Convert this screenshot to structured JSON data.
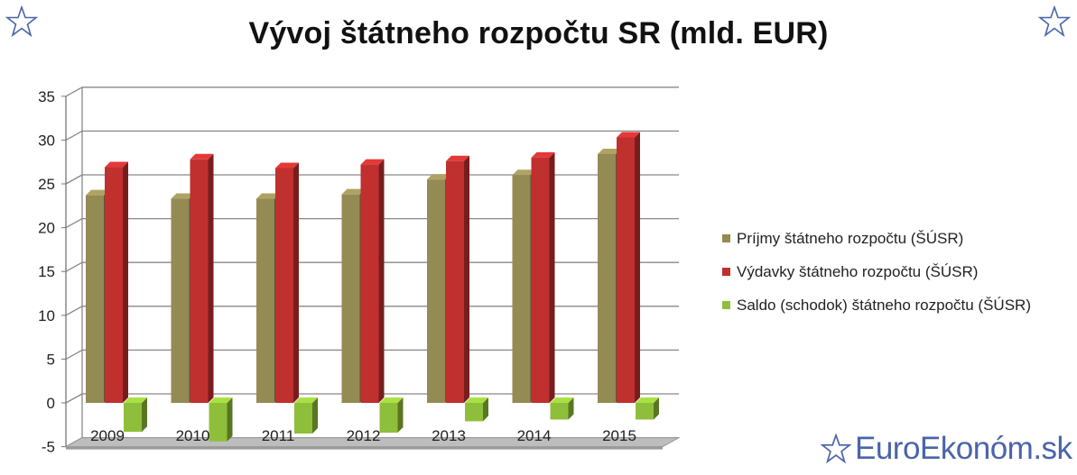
{
  "title": "Vývoj štátneho rozpočtu SR (mld. EUR)",
  "brand": "EuroEkonóm.sk",
  "icons": {
    "left": "star-outline-icon",
    "right": "star-outline-icon",
    "brand": "star-outline-icon"
  },
  "colors": {
    "income": "#948a54",
    "expense": "#c0302f",
    "balance": "#8fbf3a",
    "brand": "#4a64ab"
  },
  "chart_data": {
    "type": "bar",
    "categories": [
      "2009",
      "2010",
      "2011",
      "2012",
      "2013",
      "2014",
      "2015"
    ],
    "series": [
      {
        "name": "Príjmy štátneho rozpočtu (ŠÚSR)",
        "values": [
          23.7,
          23.3,
          23.3,
          23.8,
          25.5,
          26.0,
          28.4
        ]
      },
      {
        "name": "Výdavky štátneho rozpočtu (ŠÚSR)",
        "values": [
          26.9,
          27.8,
          26.8,
          27.2,
          27.6,
          28.0,
          30.3
        ]
      },
      {
        "name": "Saldo (schodok) štátneho rozpočtu (ŠÚSR)",
        "values": [
          -3.3,
          -4.4,
          -3.5,
          -3.4,
          -2.1,
          -1.9,
          -1.9
        ]
      }
    ],
    "yticks": [
      "-5",
      "0",
      "5",
      "10",
      "15",
      "20",
      "25",
      "30",
      "35"
    ],
    "ylim": [
      -5,
      35
    ],
    "grid": true,
    "legend": "right"
  }
}
